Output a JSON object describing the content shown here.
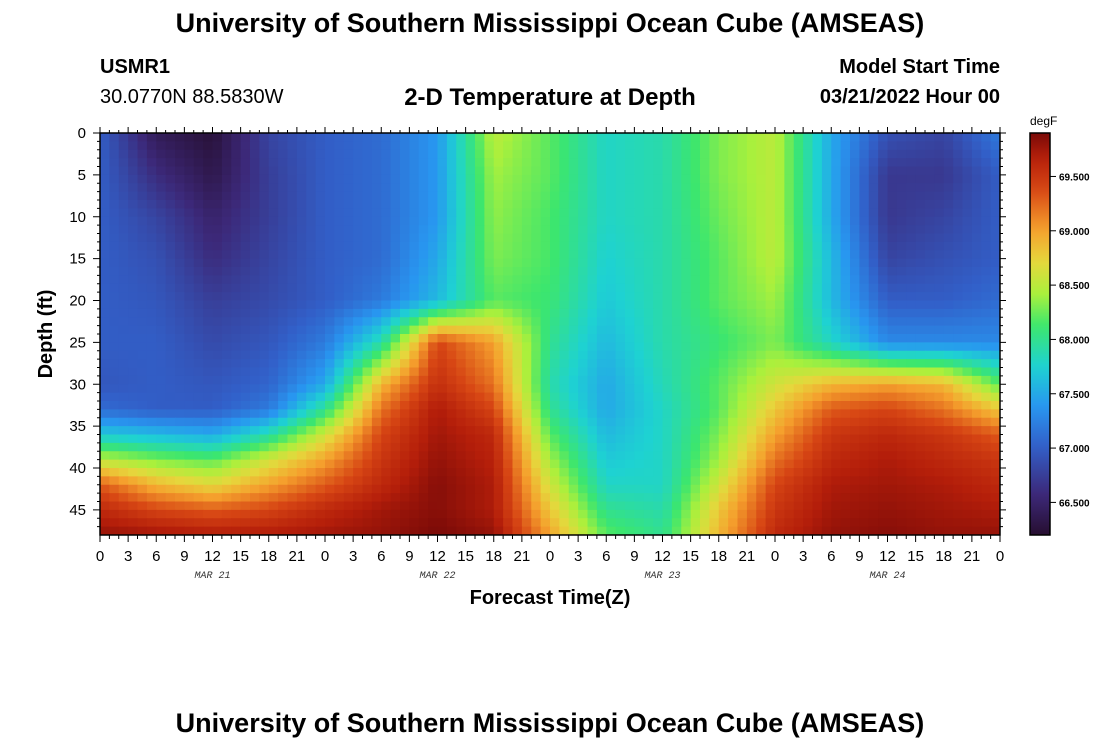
{
  "header": {
    "title": "University of Southern Mississippi Ocean Cube (AMSEAS)",
    "station_id": "USMR1",
    "location": "30.0770N  88.5830W",
    "plot_title": "2-D Temperature at Depth",
    "model_start_label": "Model Start Time",
    "model_start_value": "03/21/2022 Hour 00"
  },
  "footer": {
    "title": "University of Southern Mississippi Ocean Cube (AMSEAS)"
  },
  "chart_data": {
    "type": "heatmap",
    "title": "2-D Temperature at Depth",
    "xlabel": "Forecast Time(Z)",
    "ylabel": "Depth (ft)",
    "x_tick_labels": [
      "0",
      "3",
      "6",
      "9",
      "12",
      "15",
      "18",
      "21",
      "0",
      "3",
      "6",
      "9",
      "12",
      "15",
      "18",
      "21",
      "0",
      "3",
      "6",
      "9",
      "12",
      "15",
      "18",
      "21",
      "0",
      "3",
      "6",
      "9",
      "12",
      "15",
      "18",
      "21",
      "0"
    ],
    "date_labels": [
      "MAR 21",
      "MAR 22",
      "MAR 23",
      "MAR 24"
    ],
    "x_range_hours": [
      0,
      96
    ],
    "y_ticks": [
      0,
      5,
      10,
      15,
      20,
      25,
      30,
      35,
      40,
      45
    ],
    "y_range": [
      0,
      48
    ],
    "y_reversed": true,
    "colorbar": {
      "unit": "degF",
      "range": [
        66.2,
        69.9
      ],
      "tick_values": [
        66.5,
        67.0,
        67.5,
        68.0,
        68.5,
        69.0,
        69.5
      ],
      "tick_labels": [
        "66.500",
        "67.000",
        "67.500",
        "68.000",
        "68.500",
        "69.000",
        "69.500"
      ]
    },
    "x_hours": [
      0,
      6,
      12,
      18,
      24,
      30,
      36,
      42,
      48,
      54,
      60,
      66,
      72,
      78,
      84,
      90,
      96
    ],
    "depth_ft": [
      0,
      5,
      10,
      15,
      20,
      25,
      30,
      33,
      36,
      39,
      42,
      45,
      48
    ],
    "values_degF": [
      [
        67.0,
        66.4,
        66.25,
        66.8,
        67.0,
        67.1,
        67.4,
        68.5,
        68.2,
        67.8,
        67.9,
        68.3,
        68.5,
        67.5,
        66.9,
        66.8,
        67.2
      ],
      [
        67.0,
        66.6,
        66.35,
        66.75,
        67.0,
        67.1,
        67.4,
        68.4,
        68.2,
        67.8,
        67.9,
        68.3,
        68.5,
        67.5,
        66.7,
        66.7,
        67.0
      ],
      [
        67.0,
        66.8,
        66.5,
        66.75,
        67.0,
        67.1,
        67.4,
        68.35,
        68.15,
        67.8,
        67.9,
        68.25,
        68.5,
        67.5,
        66.7,
        66.8,
        67.0
      ],
      [
        67.0,
        66.9,
        66.6,
        66.8,
        67.0,
        67.1,
        67.5,
        68.3,
        68.15,
        67.75,
        67.9,
        68.2,
        68.5,
        67.6,
        66.8,
        66.9,
        67.0
      ],
      [
        67.0,
        66.95,
        66.75,
        66.85,
        67.0,
        67.2,
        67.6,
        68.2,
        68.1,
        67.7,
        67.9,
        68.2,
        68.4,
        67.6,
        67.0,
        67.0,
        67.1
      ],
      [
        67.0,
        67.0,
        66.85,
        66.95,
        67.2,
        67.9,
        69.4,
        69.0,
        68.0,
        67.6,
        67.9,
        68.1,
        68.3,
        67.8,
        67.3,
        67.3,
        67.3
      ],
      [
        66.95,
        67.0,
        66.95,
        67.05,
        67.5,
        68.9,
        69.55,
        69.2,
        67.9,
        67.5,
        67.85,
        68.2,
        68.6,
        68.9,
        69.0,
        68.9,
        68.2
      ],
      [
        67.1,
        67.0,
        67.0,
        67.2,
        68.0,
        69.2,
        69.7,
        69.4,
        68.0,
        67.5,
        67.8,
        68.2,
        68.8,
        69.3,
        69.4,
        69.2,
        68.8
      ],
      [
        67.7,
        67.6,
        67.5,
        67.9,
        68.6,
        69.4,
        69.75,
        69.6,
        68.2,
        67.6,
        67.8,
        68.3,
        69.0,
        69.5,
        69.6,
        69.5,
        69.3
      ],
      [
        68.5,
        68.3,
        68.2,
        68.6,
        69.0,
        69.5,
        69.8,
        69.65,
        68.4,
        67.7,
        67.8,
        68.4,
        69.2,
        69.6,
        69.7,
        69.6,
        69.5
      ],
      [
        69.3,
        68.9,
        68.7,
        69.0,
        69.3,
        69.6,
        69.85,
        69.7,
        68.6,
        67.8,
        67.8,
        68.6,
        69.4,
        69.7,
        69.75,
        69.7,
        69.6
      ],
      [
        69.6,
        69.4,
        69.3,
        69.4,
        69.6,
        69.75,
        69.85,
        69.7,
        68.8,
        68.0,
        67.9,
        68.8,
        69.5,
        69.75,
        69.8,
        69.75,
        69.7
      ],
      [
        69.8,
        69.75,
        69.7,
        69.7,
        69.75,
        69.8,
        69.9,
        69.8,
        69.0,
        68.2,
        68.0,
        68.9,
        69.6,
        69.8,
        69.85,
        69.8,
        69.8
      ]
    ]
  }
}
